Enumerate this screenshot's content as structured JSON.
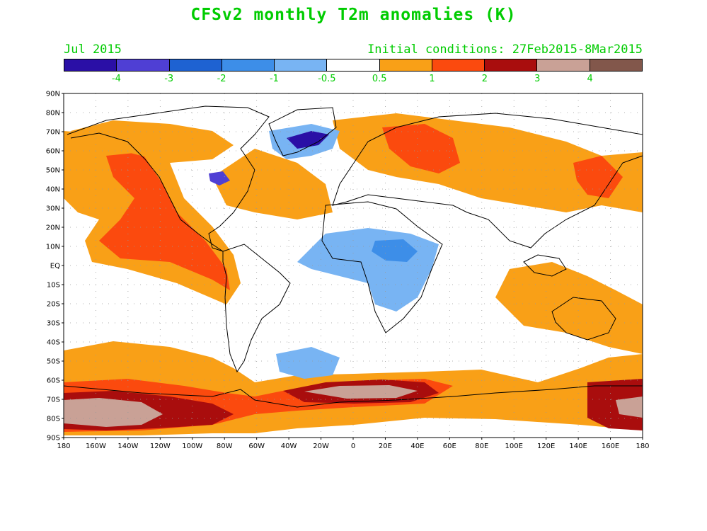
{
  "title": "CFSv2 monthly T2m anomalies (K)",
  "month": "Jul 2015",
  "initial_conditions": "Initial conditions: 27Feb2015-8Mar2015",
  "colorbar": {
    "colors": [
      "#2a0fa6",
      "#4f3fd4",
      "#1e62d2",
      "#3d8ee8",
      "#78b4f3",
      "#ffffff",
      "#f9a017",
      "#fb4a0e",
      "#a90d0d",
      "#c9a196",
      "#82574b"
    ],
    "labels": [
      "-4",
      "-3",
      "-2",
      "-1",
      "-0.5",
      "0.5",
      "1",
      "2",
      "3",
      "4"
    ]
  },
  "map": {
    "lat_labels": [
      "90N",
      "80N",
      "70N",
      "60N",
      "50N",
      "40N",
      "30N",
      "20N",
      "10N",
      "EQ",
      "10S",
      "20S",
      "30S",
      "40S",
      "50S",
      "60S",
      "70S",
      "80S",
      "90S"
    ],
    "lon_labels": [
      "180",
      "160W",
      "140W",
      "120W",
      "100W",
      "80W",
      "60W",
      "40W",
      "20W",
      "0",
      "20E",
      "40E",
      "60E",
      "80E",
      "100E",
      "120E",
      "140E",
      "160E",
      "180"
    ]
  }
}
